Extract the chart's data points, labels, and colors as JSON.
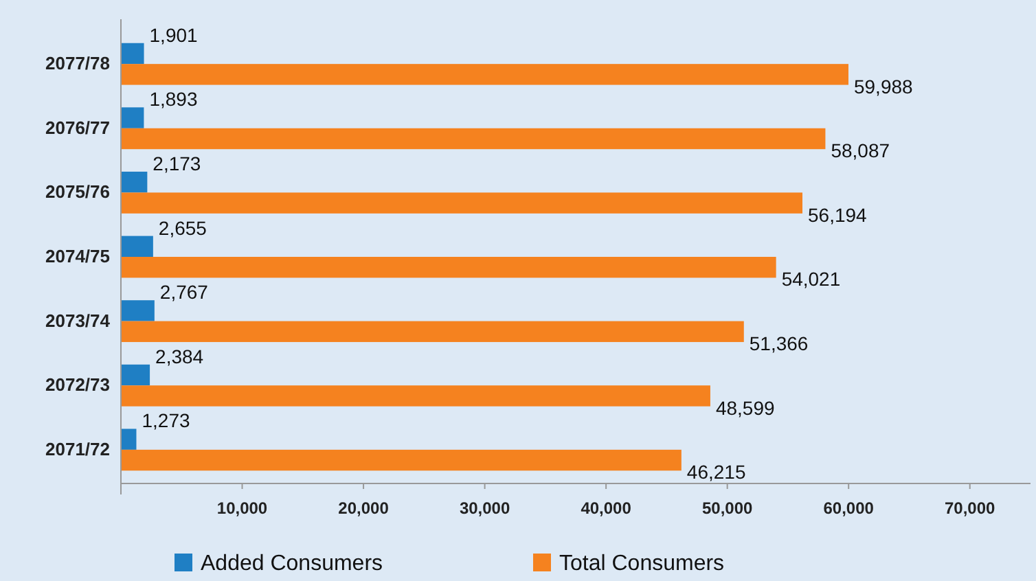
{
  "chart_data": {
    "type": "bar",
    "orientation": "horizontal",
    "categories": [
      "2077/78",
      "2076/77",
      "2075/76",
      "2074/75",
      "2073/74",
      "2072/73",
      "2071/72"
    ],
    "series": [
      {
        "name": "Added Consumers",
        "color": "#1f7fc4",
        "values": [
          1901,
          1893,
          2173,
          2655,
          2767,
          2384,
          1273
        ],
        "value_labels": [
          "1,901",
          "1,893",
          "2,173",
          "2,655",
          "2,767",
          "2,384",
          "1,273"
        ]
      },
      {
        "name": "Total Consumers",
        "color": "#f5821f",
        "values": [
          59988,
          58087,
          56194,
          54021,
          51366,
          48599,
          46215
        ],
        "value_labels": [
          "59,988",
          "58,087",
          "56,194",
          "54,021",
          "51,366",
          "48,599",
          "46,215"
        ]
      }
    ],
    "xlim": [
      0,
      75000
    ],
    "xticks": [
      {
        "value": 10000,
        "label": "10,000"
      },
      {
        "value": 20000,
        "label": "20,000"
      },
      {
        "value": 30000,
        "label": "30,000"
      },
      {
        "value": 40000,
        "label": "40,000"
      },
      {
        "value": 50000,
        "label": "50,000"
      },
      {
        "value": 60000,
        "label": "60,000"
      },
      {
        "value": 70000,
        "label": "70,000"
      }
    ],
    "legend": "bottom",
    "grid": false
  }
}
